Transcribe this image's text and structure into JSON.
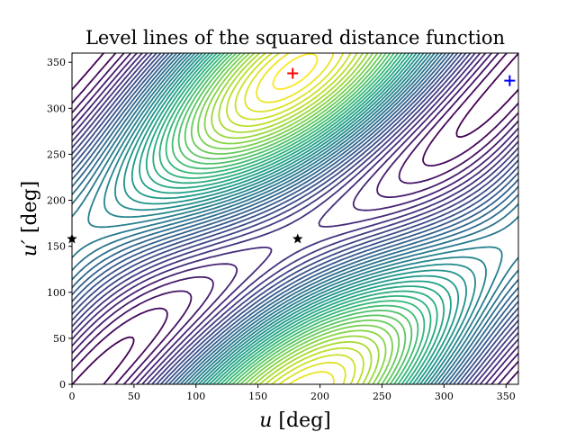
{
  "chart_data": {
    "type": "contour",
    "title": "Level lines of the squared distance function",
    "xlabel": {
      "var": "u",
      "unit": "[deg]"
    },
    "ylabel": {
      "var": "u′",
      "unit": "[deg]"
    },
    "xlim": [
      0,
      360
    ],
    "ylim": [
      0,
      360
    ],
    "xticks": [
      "0",
      "50",
      "100",
      "150",
      "200",
      "250",
      "300",
      "350"
    ],
    "yticks": [
      "0",
      "50",
      "100",
      "150",
      "200",
      "250",
      "300",
      "350"
    ],
    "grid": false,
    "colormap": "viridis",
    "markers": [
      {
        "type": "plus",
        "color": "#ff0000",
        "u": 178,
        "u_prime": 338
      },
      {
        "type": "plus",
        "color": "#0000ff",
        "u": 353,
        "u_prime": 330
      },
      {
        "type": "star",
        "color": "#000000",
        "u": 0,
        "u_prime": 158
      },
      {
        "type": "star",
        "color": "#000000",
        "u": 182,
        "u_prime": 158
      }
    ]
  }
}
